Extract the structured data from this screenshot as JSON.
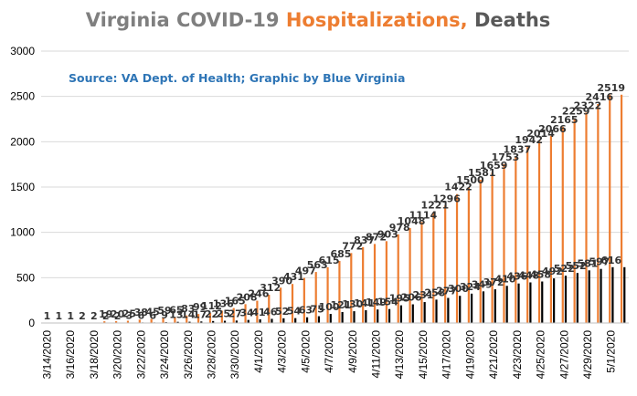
{
  "chart_data": {
    "type": "bar",
    "title_parts": [
      {
        "text": "Virginia COVID-19 ",
        "color": "#7f7f7f"
      },
      {
        "text": "Hospitalizations, ",
        "color": "#ed7d31"
      },
      {
        "text": "Deaths",
        "color": "#595959"
      }
    ],
    "source_note": "Source: VA Dept. of Health; Graphic by Blue Virginia",
    "source_color": "#2e75b6",
    "ylim": [
      0,
      3000
    ],
    "yticks": [
      0,
      500,
      1000,
      1500,
      2000,
      2500,
      3000
    ],
    "grid": "y-major",
    "x_tick_labels": [
      "3/14/2020",
      "3/16/2020",
      "3/18/2020",
      "3/20/2020",
      "3/22/2020",
      "3/24/2020",
      "3/26/2020",
      "3/28/2020",
      "3/30/2020",
      "4/1/2020",
      "4/3/2020",
      "4/5/2020",
      "4/7/2020",
      "4/9/2020",
      "4/11/2020",
      "4/13/2020",
      "4/15/2020",
      "4/17/2020",
      "4/19/2020",
      "4/21/2020",
      "4/23/2020",
      "4/25/2020",
      "4/27/2020",
      "4/29/2020",
      "5/1/2020"
    ],
    "categories": [
      "3/14/2020",
      "3/15/2020",
      "3/16/2020",
      "3/17/2020",
      "3/18/2020",
      "3/19/2020",
      "3/20/2020",
      "3/21/2020",
      "3/22/2020",
      "3/23/2020",
      "3/24/2020",
      "3/25/2020",
      "3/26/2020",
      "3/27/2020",
      "3/28/2020",
      "3/29/2020",
      "3/30/2020",
      "3/31/2020",
      "4/1/2020",
      "4/2/2020",
      "4/3/2020",
      "4/4/2020",
      "4/5/2020",
      "4/6/2020",
      "4/7/2020",
      "4/8/2020",
      "4/9/2020",
      "4/10/2020",
      "4/11/2020",
      "4/12/2020",
      "4/13/2020",
      "4/14/2020",
      "4/15/2020",
      "4/16/2020",
      "4/17/2020",
      "4/18/2020",
      "4/19/2020",
      "4/20/2020",
      "4/21/2020",
      "4/22/2020",
      "4/23/2020",
      "4/24/2020",
      "4/25/2020",
      "4/26/2020",
      "4/27/2020",
      "4/28/2020",
      "4/29/2020",
      "4/30/2020",
      "5/1/2020",
      "5/2/2020"
    ],
    "series": [
      {
        "color": "#ed7d31",
        "values": [
          1,
          1,
          1,
          2,
          2,
          19,
          20,
          25,
          38,
          45,
          59,
          65,
          83,
          99,
          112,
          136,
          165,
          208,
          246,
          312,
          390,
          431,
          497,
          563,
          615,
          685,
          772,
          837,
          872,
          903,
          978,
          1048,
          1114,
          1221,
          1296,
          1422,
          1500,
          1581,
          1659,
          1753,
          1837,
          1942,
          2014,
          2066,
          2165,
          2259,
          2322,
          2416,
          2519,
          2519
        ],
        "labels": [
          "1",
          "1",
          "1",
          "2",
          "2",
          "19",
          "20",
          "25",
          "38",
          "45",
          "59",
          "65",
          "83",
          "99",
          "112",
          "136",
          "165",
          "208",
          "246",
          "312",
          "390",
          "431",
          "497",
          "563",
          "615",
          "685",
          "772",
          "837",
          "872",
          "903",
          "978",
          "1048",
          "1114",
          "1221",
          "1296",
          "1422",
          "1500",
          "1581",
          "1659",
          "1753",
          "1837",
          "1942",
          "2014",
          "2066",
          "2165",
          "2259",
          "2322",
          "2416",
          "2519",
          ""
        ]
      },
      {
        "color": "#000000",
        "values": [
          0,
          0,
          0,
          0,
          0,
          2,
          2,
          3,
          6,
          6,
          9,
          13,
          14,
          17,
          22,
          25,
          27,
          34,
          41,
          46,
          52,
          54,
          63,
          75,
          100,
          121,
          130,
          141,
          149,
          154,
          195,
          206,
          231,
          258,
          277,
          300,
          324,
          349,
          372,
          410,
          436,
          448,
          458,
          492,
          522,
          552,
          581,
          597,
          616,
          616
        ],
        "labels": [
          "",
          "",
          "",
          "",
          "",
          "2",
          "2",
          "3",
          "6",
          "6",
          "9",
          "13",
          "14",
          "17",
          "22",
          "25",
          "27",
          "34",
          "41",
          "46",
          "52",
          "54",
          "63",
          "75",
          "100",
          "121",
          "130",
          "141",
          "149",
          "154",
          "195",
          "206",
          "231",
          "258",
          "277",
          "300",
          "324",
          "349",
          "372",
          "410",
          "436",
          "448",
          "458",
          "492",
          "522",
          "552",
          "581",
          "597",
          "616",
          ""
        ]
      }
    ]
  }
}
